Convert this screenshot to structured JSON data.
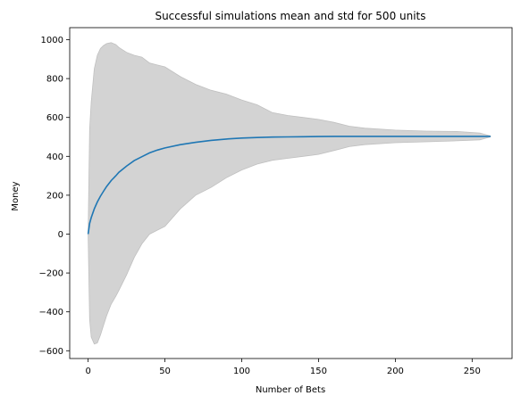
{
  "chart_data": {
    "type": "line",
    "title": "Successful simulations mean and std for 500 units",
    "xlabel": "Number of Bets",
    "ylabel": "Money",
    "xlim": [
      -12,
      276
    ],
    "ylim": [
      -640,
      1062
    ],
    "xticks": [
      0,
      50,
      100,
      150,
      200,
      250
    ],
    "yticks": [
      -600,
      -400,
      -200,
      0,
      200,
      400,
      600,
      800,
      1000
    ],
    "grid": false,
    "legend": "none",
    "colors": {
      "mean_line": "#1f77b4",
      "std_band": "#d3d3d3",
      "band_edge": "#c0c0c0"
    },
    "series": [
      {
        "role": "mean",
        "x": [
          0,
          1,
          2,
          4,
          6,
          8,
          10,
          12,
          15,
          18,
          20,
          25,
          30,
          35,
          40,
          45,
          50,
          60,
          70,
          80,
          90,
          100,
          110,
          120,
          130,
          140,
          150,
          160,
          170,
          180,
          200,
          220,
          240,
          255,
          262
        ],
        "y": [
          0,
          55,
          85,
          130,
          165,
          195,
          220,
          245,
          275,
          300,
          318,
          350,
          378,
          398,
          418,
          432,
          443,
          460,
          472,
          482,
          489,
          494,
          497,
          499,
          500,
          501,
          502,
          503,
          503,
          503,
          503,
          503,
          503,
          503,
          503
        ]
      },
      {
        "role": "mean_plus_std",
        "x": [
          0,
          1,
          2,
          4,
          6,
          8,
          10,
          12,
          15,
          18,
          20,
          25,
          30,
          35,
          40,
          45,
          50,
          60,
          70,
          80,
          90,
          100,
          110,
          120,
          130,
          140,
          150,
          160,
          170,
          180,
          200,
          220,
          240,
          255,
          262
        ],
        "y": [
          0,
          540,
          680,
          850,
          920,
          955,
          970,
          980,
          985,
          975,
          960,
          935,
          920,
          910,
          880,
          870,
          860,
          810,
          770,
          740,
          720,
          690,
          665,
          625,
          610,
          600,
          590,
          575,
          555,
          545,
          535,
          530,
          528,
          520,
          505
        ]
      },
      {
        "role": "mean_minus_std",
        "x": [
          0,
          1,
          2,
          4,
          6,
          8,
          10,
          12,
          15,
          18,
          20,
          25,
          30,
          35,
          40,
          45,
          50,
          60,
          70,
          80,
          90,
          100,
          110,
          120,
          130,
          140,
          150,
          160,
          170,
          180,
          200,
          220,
          240,
          255,
          262
        ],
        "y": [
          0,
          -440,
          -530,
          -565,
          -560,
          -520,
          -470,
          -420,
          -360,
          -320,
          -290,
          -210,
          -120,
          -50,
          0,
          20,
          40,
          130,
          200,
          240,
          290,
          330,
          360,
          380,
          390,
          400,
          410,
          430,
          450,
          460,
          470,
          475,
          480,
          485,
          500
        ]
      }
    ]
  }
}
